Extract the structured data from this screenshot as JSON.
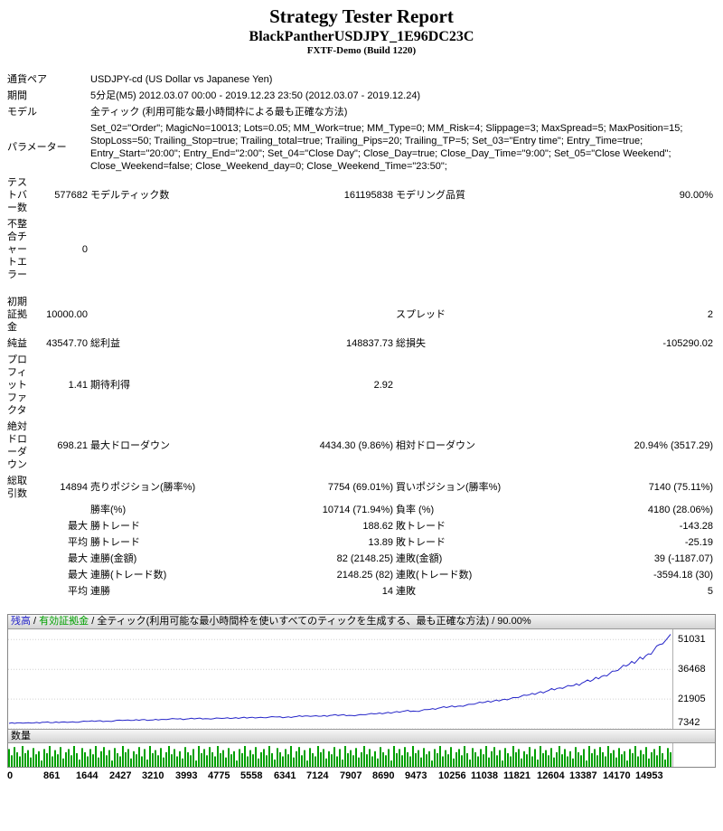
{
  "title": {
    "main": "Strategy Tester Report",
    "strategy": "BlackPantherUSDJPY_1E96DC23C",
    "build": "FXTF-Demo (Build 1220)"
  },
  "report": {
    "rows": [
      {
        "cells": [
          {
            "t": "通貨ペア",
            "c": 2
          },
          {
            "t": "USDJPY-cd (US Dollar vs Japanese Yen)",
            "c": 4
          }
        ]
      },
      {
        "cells": [
          {
            "t": "期間",
            "c": 2
          },
          {
            "t": "5分足(M5) 2012.03.07 00:00 - 2019.12.23 23:50 (2012.03.07 - 2019.12.24)",
            "c": 4
          }
        ]
      },
      {
        "cells": [
          {
            "t": "モデル",
            "c": 2
          },
          {
            "t": "全ティック (利用可能な最小時間枠による最も正確な方法)",
            "c": 4
          }
        ]
      },
      {
        "cells": [
          {
            "t": "パラメーター",
            "c": 2
          },
          {
            "t": "Set_02=\"Order\"; MagicNo=10013; Lots=0.05; MM_Work=true; MM_Type=0; MM_Risk=4; Slippage=3; MaxSpread=5; MaxPosition=15; StopLoss=50; Trailing_Stop=true; Trailing_total=true; Trailing_Pips=20; Trailing_TP=5; Set_03=\"Entry time\"; Entry_Time=true; Entry_Start=\"20:00\"; Entry_End=\"2:00\"; Set_04=\"Close Day\"; Close_Day=true; Close_Day_Time=\"9:00\"; Set_05=\"Close Weekend\"; Close_Weekend=false; Close_Weekend_day=0; Close_Weekend_Time=\"23:50\";",
            "c": 4
          }
        ]
      },
      {
        "cells": [
          {
            "t": "テストバー数"
          },
          {
            "t": "577682",
            "a": "r"
          },
          {
            "t": "モデルティック数"
          },
          {
            "t": "161195838",
            "a": "r"
          },
          {
            "t": "モデリング品質"
          },
          {
            "t": "90.00%",
            "a": "r"
          }
        ]
      },
      {
        "cells": [
          {
            "t": "不整合チャートエラー"
          },
          {
            "t": "0",
            "a": "r"
          },
          {
            "t": "",
            "c": 4
          }
        ]
      },
      {
        "spacer": true
      },
      {
        "cells": [
          {
            "t": "初期証拠金"
          },
          {
            "t": "10000.00",
            "a": "r"
          },
          {
            "t": ""
          },
          {
            "t": "",
            "a": "r"
          },
          {
            "t": "スプレッド"
          },
          {
            "t": "2",
            "a": "r"
          }
        ]
      },
      {
        "cells": [
          {
            "t": "純益"
          },
          {
            "t": "43547.70",
            "a": "r"
          },
          {
            "t": "総利益"
          },
          {
            "t": "148837.73",
            "a": "r"
          },
          {
            "t": "総損失"
          },
          {
            "t": "-105290.02",
            "a": "r"
          }
        ]
      },
      {
        "cells": [
          {
            "t": "プロフィットファクタ"
          },
          {
            "t": "1.41",
            "a": "r"
          },
          {
            "t": "期待利得"
          },
          {
            "t": "2.92",
            "a": "r"
          },
          {
            "t": ""
          },
          {
            "t": "",
            "a": "r"
          }
        ]
      },
      {
        "cells": [
          {
            "t": "絶対ドローダウン"
          },
          {
            "t": "698.21",
            "a": "r"
          },
          {
            "t": "最大ドローダウン"
          },
          {
            "t": "4434.30 (9.86%)",
            "a": "r"
          },
          {
            "t": "相対ドローダウン"
          },
          {
            "t": "20.94% (3517.29)",
            "a": "r"
          }
        ]
      },
      {
        "cells": [
          {
            "t": "総取引数"
          },
          {
            "t": "14894",
            "a": "r"
          },
          {
            "t": "売りポジション(勝率%)"
          },
          {
            "t": "7754 (69.01%)",
            "a": "r"
          },
          {
            "t": "買いポジション(勝率%)"
          },
          {
            "t": "7140 (75.11%)",
            "a": "r"
          }
        ]
      },
      {
        "cells": [
          {
            "t": ""
          },
          {
            "t": "",
            "a": "r"
          },
          {
            "t": "勝率(%)"
          },
          {
            "t": "10714 (71.94%)",
            "a": "r"
          },
          {
            "t": "負率 (%)"
          },
          {
            "t": "4180 (28.06%)",
            "a": "r"
          }
        ]
      },
      {
        "cells": [
          {
            "t": ""
          },
          {
            "t": "最大",
            "a": "r"
          },
          {
            "t": "勝トレード"
          },
          {
            "t": "188.62",
            "a": "r"
          },
          {
            "t": "敗トレード"
          },
          {
            "t": "-143.28",
            "a": "r"
          }
        ]
      },
      {
        "cells": [
          {
            "t": ""
          },
          {
            "t": "平均",
            "a": "r"
          },
          {
            "t": "勝トレード"
          },
          {
            "t": "13.89",
            "a": "r"
          },
          {
            "t": "敗トレード"
          },
          {
            "t": "-25.19",
            "a": "r"
          }
        ]
      },
      {
        "cells": [
          {
            "t": ""
          },
          {
            "t": "最大",
            "a": "r"
          },
          {
            "t": "連勝(金額)"
          },
          {
            "t": "82 (2148.25)",
            "a": "r"
          },
          {
            "t": "連敗(金額)"
          },
          {
            "t": "39 (-1187.07)",
            "a": "r"
          }
        ]
      },
      {
        "cells": [
          {
            "t": ""
          },
          {
            "t": "最大",
            "a": "r"
          },
          {
            "t": "連勝(トレード数)"
          },
          {
            "t": "2148.25 (82)",
            "a": "r"
          },
          {
            "t": "連敗(トレード数)"
          },
          {
            "t": "-3594.18 (30)",
            "a": "r"
          }
        ]
      },
      {
        "cells": [
          {
            "t": ""
          },
          {
            "t": "平均",
            "a": "r"
          },
          {
            "t": "連勝"
          },
          {
            "t": "14",
            "a": "r"
          },
          {
            "t": "連敗"
          },
          {
            "t": "5",
            "a": "r"
          }
        ]
      }
    ]
  },
  "chart_data": {
    "type": "line",
    "legend": [
      {
        "label": "残高",
        "color": "#2424c8"
      },
      {
        "label": "有効証拠金",
        "color": "#00a000"
      }
    ],
    "separator": " / ",
    "model_note": "全ティック(利用可能な最小時間枠を使いすべてのティックを生成する、最も正確な方法)",
    "modeling_quality": "90.00%",
    "x_max": 14953,
    "ylim": [
      7342,
      56000
    ],
    "y_ticks": [
      51031,
      36468,
      21905,
      7342
    ],
    "x_ticks": [
      0,
      861,
      1644,
      2427,
      3210,
      3993,
      4775,
      5558,
      6341,
      7124,
      7907,
      8690,
      9473,
      10256,
      11038,
      11821,
      12604,
      13387,
      14170,
      14953
    ],
    "grid_color": "#d0d0d0",
    "series": [
      {
        "name": "残高",
        "color": "#2424c8",
        "points": [
          [
            0,
            10000
          ],
          [
            250,
            10280
          ],
          [
            500,
            10160
          ],
          [
            750,
            10520
          ],
          [
            1000,
            10400
          ],
          [
            1250,
            10720
          ],
          [
            1500,
            10580
          ],
          [
            1750,
            10950
          ],
          [
            2000,
            11200
          ],
          [
            2250,
            11040
          ],
          [
            2500,
            11600
          ],
          [
            2750,
            11400
          ],
          [
            3000,
            11820
          ],
          [
            3250,
            11640
          ],
          [
            3500,
            11960
          ],
          [
            3750,
            12260
          ],
          [
            4000,
            12080
          ],
          [
            4250,
            12420
          ],
          [
            4500,
            12260
          ],
          [
            4750,
            12560
          ],
          [
            5000,
            12400
          ],
          [
            5250,
            12720
          ],
          [
            5500,
            13000
          ],
          [
            5750,
            12820
          ],
          [
            6000,
            13160
          ],
          [
            6250,
            12990
          ],
          [
            6500,
            13360
          ],
          [
            6750,
            13660
          ],
          [
            7000,
            13500
          ],
          [
            7250,
            13860
          ],
          [
            7500,
            14060
          ],
          [
            7750,
            13900
          ],
          [
            8000,
            14260
          ],
          [
            8250,
            14620
          ],
          [
            8500,
            15020
          ],
          [
            8700,
            15420
          ],
          [
            8950,
            16120
          ],
          [
            9200,
            15920
          ],
          [
            9450,
            16720
          ],
          [
            9700,
            17420
          ],
          [
            9950,
            18120
          ],
          [
            10200,
            18520
          ],
          [
            10450,
            19320
          ],
          [
            10700,
            20120
          ],
          [
            10950,
            20920
          ],
          [
            11200,
            21820
          ],
          [
            11450,
            22620
          ],
          [
            11700,
            23720
          ],
          [
            11950,
            24920
          ],
          [
            12200,
            26120
          ],
          [
            12450,
            27320
          ],
          [
            12700,
            28320
          ],
          [
            12950,
            29720
          ],
          [
            13200,
            31320
          ],
          [
            13450,
            33420
          ],
          [
            13700,
            35620
          ],
          [
            13950,
            38020
          ],
          [
            14200,
            40820
          ],
          [
            14450,
            44020
          ],
          [
            14700,
            48520
          ],
          [
            14850,
            50820
          ],
          [
            14953,
            53548
          ]
        ]
      }
    ],
    "volume_label": "数量",
    "volume_color": "#00a000",
    "volume_pattern": [
      0.85,
      0.55,
      0.95,
      0.7,
      0.5,
      1,
      0.65,
      0.8,
      0.45,
      0.9,
      0.6,
      0.75,
      0.3,
      0.85,
      0.65,
      1,
      0.5,
      0.8,
      0.6,
      0.95,
      0.4,
      0.7,
      0.85,
      0.55,
      1,
      0.65,
      0.35,
      0.9,
      0.7,
      0.5,
      0.85,
      0.6,
      1,
      0.45,
      0.75,
      0.95,
      0.55,
      0.8,
      0.3,
      0.9,
      0.65,
      0.5,
      1,
      0.7,
      0.85,
      0.4,
      0.75,
      0.6,
      0.95,
      0.5,
      0.85,
      0.35,
      1,
      0.65,
      0.8,
      0.55,
      0.9,
      0.45,
      0.7,
      1,
      0.6,
      0.85,
      0.5,
      0.75,
      0.4,
      0.95,
      0.7,
      0.55,
      0.85,
      0.3,
      1,
      0.65
    ]
  }
}
